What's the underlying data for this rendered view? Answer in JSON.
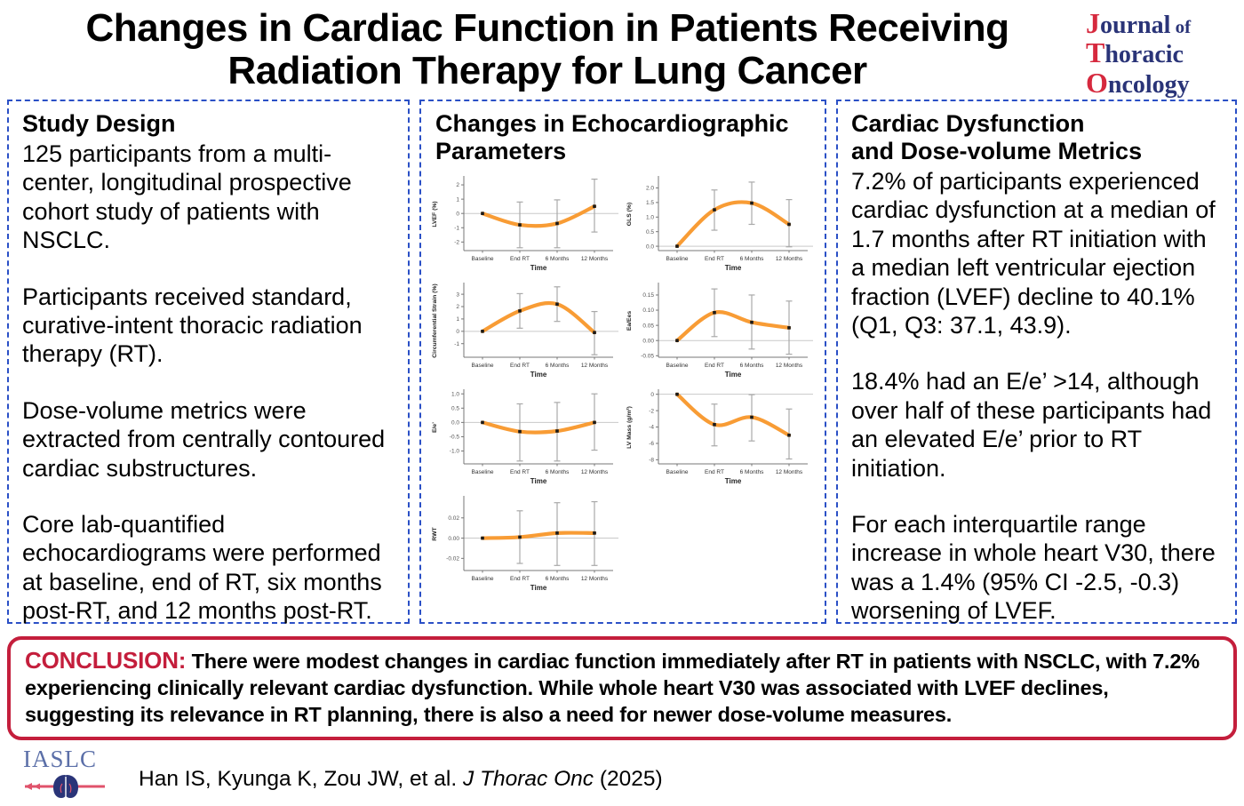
{
  "header": {
    "title": "Changes in Cardiac Function in Patients Receiving Radiation Therapy for Lung Cancer",
    "journal_logo": {
      "line1_initial": "J",
      "line1_rest": "ournal",
      "line1_of": " of",
      "line2_initial": "T",
      "line2_rest": "horacic",
      "line3_initial": "O",
      "line3_rest": "ncology"
    }
  },
  "study_design": {
    "heading": "Study Design",
    "paragraphs": [
      "125 participants from a multi-center, longitudinal prospective cohort study of patients with NSCLC.",
      "Participants received standard, curative-intent thoracic radiation therapy (RT).",
      "Dose-volume metrics were extracted from centrally contoured cardiac substructures.",
      "Core lab-quantified echocardiograms were performed at baseline, end of RT, six months post-RT, and 12 months post-RT."
    ]
  },
  "echo_panel": {
    "heading": "Changes in Echocardiographic Parameters"
  },
  "chart_data": {
    "type": "line",
    "categories": [
      "Baseline",
      "End RT",
      "6 Months",
      "12 Months"
    ],
    "xlabel": "Time",
    "line_color": "#F89C35",
    "error_bar_color": "#A9A9A9",
    "marker_color": "#1a1a1a",
    "panels": [
      {
        "name": "lvef",
        "ylabel": "LVEF (%)",
        "values": [
          0,
          -0.8,
          -0.7,
          0.5
        ],
        "err_low": [
          null,
          -2.4,
          -2.4,
          -1.3
        ],
        "err_high": [
          null,
          0.8,
          0.95,
          2.4
        ],
        "ytick_labels": [
          "2",
          "1",
          "0",
          "-1",
          "-2"
        ],
        "ylim": [
          -2.6,
          2.5
        ]
      },
      {
        "name": "gls",
        "ylabel": "GLS (%)",
        "values": [
          0,
          1.25,
          1.48,
          0.75
        ],
        "err_low": [
          null,
          0.55,
          0.75,
          -0.02
        ],
        "err_high": [
          null,
          1.93,
          2.2,
          1.6
        ],
        "ytick_labels": [
          "2.0",
          "1.5",
          "1.0",
          "0.5",
          "0.0"
        ],
        "ylim": [
          -0.15,
          2.35
        ]
      },
      {
        "name": "circumferential-strain",
        "ylabel": "Circumferential Strain (%)",
        "values": [
          0,
          1.65,
          2.2,
          -0.1
        ],
        "err_low": [
          null,
          0.25,
          0.8,
          -1.9
        ],
        "err_high": [
          null,
          3.05,
          3.6,
          1.6
        ],
        "ytick_labels": [
          "3",
          "2",
          "1",
          "0",
          "-1"
        ],
        "ylim": [
          -2.1,
          3.8
        ]
      },
      {
        "name": "ea-ees",
        "ylabel": "Ea/Ees",
        "values": [
          0,
          0.092,
          0.06,
          0.042
        ],
        "err_low": [
          null,
          0.013,
          -0.028,
          -0.045
        ],
        "err_high": [
          null,
          0.17,
          0.15,
          0.13
        ],
        "ytick_labels": [
          "0.15",
          "0.10",
          "0.05",
          "0.00",
          "-0.05"
        ],
        "ylim": [
          -0.055,
          0.185
        ]
      },
      {
        "name": "e-over-e-prime",
        "ylabel": "E/e’",
        "values": [
          0,
          -0.32,
          -0.3,
          0.0
        ],
        "err_low": [
          null,
          -1.35,
          -1.35,
          -0.97
        ],
        "err_high": [
          null,
          0.65,
          0.7,
          1.0
        ],
        "ytick_labels": [
          "1.0",
          "0.5",
          "0.0",
          "-0.5",
          "-1.0"
        ],
        "ylim": [
          -1.45,
          1.1
        ]
      },
      {
        "name": "lv-mass",
        "ylabel": "LV Mass (g/m²)",
        "values": [
          0,
          -3.7,
          -2.8,
          -5.0
        ],
        "err_low": [
          null,
          -6.3,
          -5.7,
          -7.9
        ],
        "err_high": [
          null,
          -1.2,
          -0.05,
          -1.8
        ],
        "ytick_labels": [
          "0",
          "-2",
          "-4",
          "-6",
          "-8"
        ],
        "ylim": [
          -8.5,
          0.4
        ]
      },
      {
        "name": "rwt",
        "ylabel": "RWT",
        "values": [
          0,
          0.001,
          0.005,
          0.005
        ],
        "err_low": [
          null,
          -0.025,
          -0.027,
          -0.027
        ],
        "err_high": [
          null,
          0.027,
          0.035,
          0.036
        ],
        "ytick_labels": [
          "0.02",
          "0.00",
          "-0.02"
        ],
        "ylim": [
          -0.032,
          0.04
        ]
      }
    ]
  },
  "cardiac_panel": {
    "heading_line1": "Cardiac Dysfunction",
    "heading_line2": "and Dose-volume Metrics",
    "paragraphs": [
      "7.2% of participants experienced cardiac dysfunction at a median of 1.7 months after RT initiation with a median left ventricular ejection fraction (LVEF) decline to 40.1% (Q1, Q3: 37.1, 43.9).",
      "18.4% had an E/e’ >14, although over half of these participants had an elevated E/e’ prior to RT initiation.",
      "For each interquartile range increase in whole heart V30, there was a 1.4% (95% CI -2.5, -0.3) worsening of LVEF."
    ]
  },
  "conclusion": {
    "label": "CONCLUSION:",
    "text": " There were modest changes in cardiac function immediately after RT in patients with NSCLC, with 7.2% experiencing clinically relevant cardiac dysfunction. While whole heart V30 was associated with LVEF declines, suggesting its relevance in RT planning, there is also a need for newer dose-volume measures."
  },
  "footer": {
    "iaslc_label": "IASLC",
    "citation_authors": "Han IS, Kyunga K, Zou JW, et al. ",
    "citation_journal": "J Thorac Onc",
    "citation_year": " (2025)"
  }
}
